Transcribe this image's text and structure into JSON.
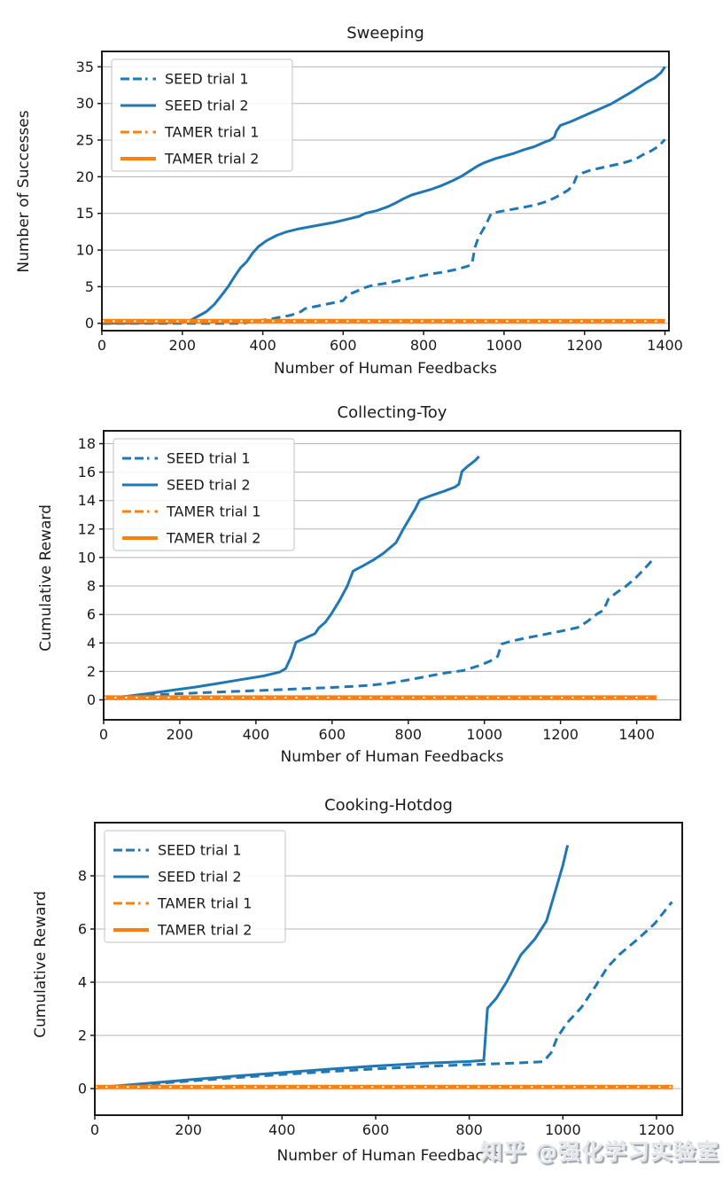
{
  "watermark": {
    "text": "知乎 @强化学习实验室"
  },
  "palette": {
    "seed_blue": "#1f77b4",
    "tamer_orange": "#ff7f0e",
    "grid_gray": "#b3b3b3",
    "spine_dark": "#1a1a1a",
    "label_dark": "#1a1a1a",
    "legend_border": "#cccccc"
  },
  "legend_entries": [
    {
      "label": "SEED trial 1",
      "color_key": "seed_blue",
      "line_style": "dashed"
    },
    {
      "label": "SEED trial 2",
      "color_key": "seed_blue",
      "line_style": "solid"
    },
    {
      "label": "TAMER trial 1",
      "color_key": "tamer_orange",
      "line_style": "dashed"
    },
    {
      "label": "TAMER trial 2",
      "color_key": "tamer_orange",
      "line_style": "solid"
    }
  ],
  "chart_data": [
    {
      "type": "line",
      "title": "Sweeping",
      "xlabel": "Number of Human Feedbacks",
      "ylabel": "Number of Successes",
      "xticks": [
        0,
        200,
        400,
        600,
        800,
        1000,
        1200,
        1400
      ],
      "yticks": [
        0,
        5,
        10,
        15,
        20,
        25,
        30,
        35
      ],
      "xlim": [
        0,
        1410
      ],
      "ylim": [
        -1,
        37.1
      ],
      "grid": "horizontal",
      "legend_position": "upper-left",
      "series": [
        {
          "name": "SEED trial 1",
          "color_key": "seed_blue",
          "style": "dashed",
          "points": [
            [
              0,
              0
            ],
            [
              350,
              0
            ],
            [
              380,
              0.3
            ],
            [
              410,
              0.5
            ],
            [
              440,
              0.8
            ],
            [
              470,
              1.1
            ],
            [
              495,
              1.6
            ],
            [
              505,
              2
            ],
            [
              540,
              2.4
            ],
            [
              575,
              2.8
            ],
            [
              600,
              3.1
            ],
            [
              612,
              3.9
            ],
            [
              630,
              4.3
            ],
            [
              655,
              4.9
            ],
            [
              675,
              5.2
            ],
            [
              710,
              5.5
            ],
            [
              745,
              5.9
            ],
            [
              780,
              6.3
            ],
            [
              815,
              6.7
            ],
            [
              850,
              7
            ],
            [
              885,
              7.4
            ],
            [
              910,
              7.8
            ],
            [
              920,
              8.1
            ],
            [
              928,
              10.4
            ],
            [
              936,
              11.7
            ],
            [
              948,
              12.8
            ],
            [
              958,
              13.8
            ],
            [
              968,
              15
            ],
            [
              995,
              15.3
            ],
            [
              1025,
              15.6
            ],
            [
              1055,
              15.9
            ],
            [
              1080,
              16.2
            ],
            [
              1105,
              16.6
            ],
            [
              1125,
              17.1
            ],
            [
              1145,
              17.7
            ],
            [
              1160,
              18.2
            ],
            [
              1172,
              18.9
            ],
            [
              1180,
              20
            ],
            [
              1195,
              20.5
            ],
            [
              1215,
              20.9
            ],
            [
              1240,
              21.2
            ],
            [
              1265,
              21.5
            ],
            [
              1290,
              21.8
            ],
            [
              1310,
              22.1
            ],
            [
              1330,
              22.5
            ],
            [
              1345,
              23
            ],
            [
              1365,
              23.5
            ],
            [
              1385,
              24.2
            ],
            [
              1400,
              25.1
            ]
          ]
        },
        {
          "name": "SEED trial 2",
          "color_key": "seed_blue",
          "style": "solid",
          "points": [
            [
              0,
              0
            ],
            [
              200,
              0.1
            ],
            [
              220,
              0.4
            ],
            [
              240,
              1
            ],
            [
              260,
              1.6
            ],
            [
              280,
              2.6
            ],
            [
              300,
              4
            ],
            [
              315,
              5.1
            ],
            [
              330,
              6.4
            ],
            [
              345,
              7.6
            ],
            [
              360,
              8.4
            ],
            [
              375,
              9.6
            ],
            [
              390,
              10.5
            ],
            [
              410,
              11.3
            ],
            [
              435,
              12
            ],
            [
              460,
              12.5
            ],
            [
              490,
              12.9
            ],
            [
              520,
              13.2
            ],
            [
              550,
              13.5
            ],
            [
              580,
              13.8
            ],
            [
              610,
              14.2
            ],
            [
              640,
              14.6
            ],
            [
              655,
              15
            ],
            [
              685,
              15.4
            ],
            [
              710,
              15.9
            ],
            [
              730,
              16.4
            ],
            [
              750,
              17
            ],
            [
              770,
              17.5
            ],
            [
              795,
              17.9
            ],
            [
              820,
              18.3
            ],
            [
              845,
              18.8
            ],
            [
              870,
              19.4
            ],
            [
              895,
              20.1
            ],
            [
              915,
              20.8
            ],
            [
              935,
              21.5
            ],
            [
              950,
              21.9
            ],
            [
              965,
              22.2
            ],
            [
              980,
              22.5
            ],
            [
              1000,
              22.8
            ],
            [
              1025,
              23.2
            ],
            [
              1050,
              23.7
            ],
            [
              1075,
              24.1
            ],
            [
              1100,
              24.7
            ],
            [
              1115,
              25
            ],
            [
              1125,
              25.4
            ],
            [
              1130,
              26.2
            ],
            [
              1140,
              27
            ],
            [
              1165,
              27.5
            ],
            [
              1190,
              28.1
            ],
            [
              1215,
              28.7
            ],
            [
              1240,
              29.3
            ],
            [
              1265,
              29.9
            ],
            [
              1290,
              30.7
            ],
            [
              1315,
              31.5
            ],
            [
              1335,
              32.2
            ],
            [
              1355,
              32.9
            ],
            [
              1375,
              33.5
            ],
            [
              1390,
              34.2
            ],
            [
              1400,
              35
            ]
          ]
        },
        {
          "name": "TAMER trial 1",
          "color_key": "tamer_orange",
          "style": "dashed",
          "points": [
            [
              0,
              0.3
            ],
            [
              1400,
              0.3
            ]
          ]
        },
        {
          "name": "TAMER trial 2",
          "color_key": "tamer_orange",
          "style": "solid",
          "points": [
            [
              0,
              0.3
            ],
            [
              1400,
              0.3
            ]
          ]
        }
      ]
    },
    {
      "type": "line",
      "title": "Collecting-Toy",
      "xlabel": "Number of Human Feedbacks",
      "ylabel": "Cumulative Reward",
      "xticks": [
        0,
        200,
        400,
        600,
        800,
        1000,
        1200,
        1400
      ],
      "yticks": [
        0,
        2,
        4,
        6,
        8,
        10,
        12,
        14,
        16,
        18
      ],
      "xlim": [
        0,
        1515
      ],
      "ylim": [
        -1.4,
        18.9
      ],
      "grid": "horizontal",
      "legend_position": "upper-left",
      "series": [
        {
          "name": "SEED trial 1",
          "color_key": "seed_blue",
          "style": "dashed",
          "points": [
            [
              0,
              0.15
            ],
            [
              100,
              0.3
            ],
            [
              200,
              0.44
            ],
            [
              300,
              0.55
            ],
            [
              400,
              0.65
            ],
            [
              500,
              0.76
            ],
            [
              600,
              0.87
            ],
            [
              655,
              0.95
            ],
            [
              700,
              1.02
            ],
            [
              750,
              1.17
            ],
            [
              800,
              1.4
            ],
            [
              850,
              1.66
            ],
            [
              900,
              1.9
            ],
            [
              945,
              2.06
            ],
            [
              985,
              2.4
            ],
            [
              1015,
              2.72
            ],
            [
              1035,
              3.06
            ],
            [
              1045,
              3.92
            ],
            [
              1065,
              4.08
            ],
            [
              1100,
              4.3
            ],
            [
              1150,
              4.56
            ],
            [
              1200,
              4.82
            ],
            [
              1245,
              5.08
            ],
            [
              1270,
              5.5
            ],
            [
              1295,
              6.02
            ],
            [
              1313,
              6.3
            ],
            [
              1325,
              7.05
            ],
            [
              1345,
              7.5
            ],
            [
              1370,
              7.95
            ],
            [
              1395,
              8.5
            ],
            [
              1420,
              9.2
            ],
            [
              1448,
              10.02
            ]
          ]
        },
        {
          "name": "SEED trial 2",
          "color_key": "seed_blue",
          "style": "solid",
          "points": [
            [
              0,
              0.1
            ],
            [
              60,
              0.25
            ],
            [
              120,
              0.45
            ],
            [
              180,
              0.68
            ],
            [
              240,
              0.9
            ],
            [
              300,
              1.15
            ],
            [
              360,
              1.42
            ],
            [
              420,
              1.68
            ],
            [
              462,
              1.95
            ],
            [
              478,
              2.2
            ],
            [
              492,
              3
            ],
            [
              505,
              4.05
            ],
            [
              530,
              4.35
            ],
            [
              555,
              4.65
            ],
            [
              565,
              5.05
            ],
            [
              582,
              5.45
            ],
            [
              598,
              6.05
            ],
            [
              620,
              7
            ],
            [
              640,
              8
            ],
            [
              655,
              9.05
            ],
            [
              680,
              9.4
            ],
            [
              710,
              9.85
            ],
            [
              735,
              10.3
            ],
            [
              755,
              10.75
            ],
            [
              768,
              11.05
            ],
            [
              785,
              11.9
            ],
            [
              800,
              12.6
            ],
            [
              818,
              13.4
            ],
            [
              830,
              14.05
            ],
            [
              860,
              14.35
            ],
            [
              893,
              14.65
            ],
            [
              923,
              14.95
            ],
            [
              933,
              15.15
            ],
            [
              941,
              16.05
            ],
            [
              958,
              16.45
            ],
            [
              975,
              16.8
            ],
            [
              986,
              17.1
            ]
          ]
        },
        {
          "name": "TAMER trial 1",
          "color_key": "tamer_orange",
          "style": "dashed",
          "points": [
            [
              0,
              0.16
            ],
            [
              1452,
              0.16
            ]
          ]
        },
        {
          "name": "TAMER trial 2",
          "color_key": "tamer_orange",
          "style": "solid",
          "points": [
            [
              0,
              0.16
            ],
            [
              1452,
              0.16
            ]
          ]
        }
      ]
    },
    {
      "type": "line",
      "title": "Cooking-Hotdog",
      "xlabel": "Number of Human Feedbacks",
      "ylabel": "Cumulative Reward",
      "xticks": [
        0,
        200,
        400,
        600,
        800,
        1000,
        1200
      ],
      "yticks": [
        0,
        2,
        4,
        6,
        8
      ],
      "xlim": [
        0,
        1255
      ],
      "ylim": [
        -1,
        10
      ],
      "grid": "horizontal",
      "legend_position": "upper-left",
      "series": [
        {
          "name": "SEED trial 1",
          "color_key": "seed_blue",
          "style": "dashed",
          "points": [
            [
              0,
              0.02
            ],
            [
              100,
              0.15
            ],
            [
              200,
              0.28
            ],
            [
              300,
              0.41
            ],
            [
              400,
              0.53
            ],
            [
              500,
              0.64
            ],
            [
              600,
              0.74
            ],
            [
              700,
              0.83
            ],
            [
              800,
              0.9
            ],
            [
              900,
              0.96
            ],
            [
              958,
              1.01
            ],
            [
              975,
              1.35
            ],
            [
              988,
              1.92
            ],
            [
              1008,
              2.45
            ],
            [
              1040,
              3.06
            ],
            [
              1070,
              3.86
            ],
            [
              1095,
              4.56
            ],
            [
              1122,
              5.06
            ],
            [
              1160,
              5.62
            ],
            [
              1196,
              6.2
            ],
            [
              1233,
              7.02
            ]
          ]
        },
        {
          "name": "SEED trial 2",
          "color_key": "seed_blue",
          "style": "solid",
          "points": [
            [
              0,
              0.03
            ],
            [
              100,
              0.18
            ],
            [
              200,
              0.33
            ],
            [
              300,
              0.47
            ],
            [
              400,
              0.6
            ],
            [
              500,
              0.73
            ],
            [
              600,
              0.85
            ],
            [
              700,
              0.95
            ],
            [
              800,
              1.02
            ],
            [
              831,
              1.06
            ],
            [
              839,
              3.02
            ],
            [
              858,
              3.4
            ],
            [
              880,
              4.02
            ],
            [
              910,
              5.02
            ],
            [
              940,
              5.62
            ],
            [
              965,
              6.3
            ],
            [
              985,
              7.5
            ],
            [
              1000,
              8.4
            ],
            [
              1010,
              9.15
            ]
          ]
        },
        {
          "name": "TAMER trial 1",
          "color_key": "tamer_orange",
          "style": "dashed",
          "points": [
            [
              0,
              0.06
            ],
            [
              1235,
              0.06
            ]
          ]
        },
        {
          "name": "TAMER trial 2",
          "color_key": "tamer_orange",
          "style": "solid",
          "points": [
            [
              0,
              0.06
            ],
            [
              1235,
              0.06
            ]
          ]
        }
      ]
    }
  ]
}
